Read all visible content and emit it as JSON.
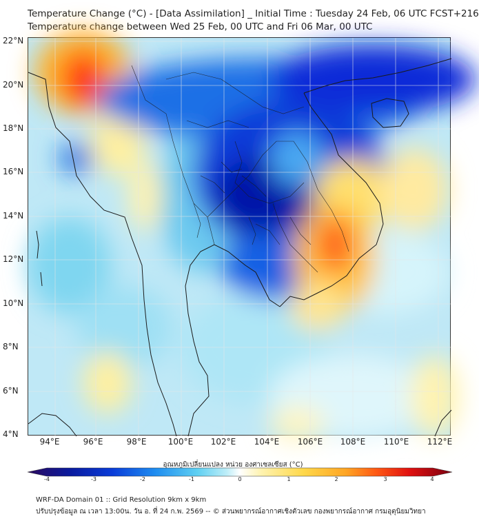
{
  "header": {
    "title_line1": "Temperature Change (°C) - [Data Assimilation] _ Initial Time : Tuesday 24 Feb, 06 UTC FCST+216",
    "title_line2": "Temperature change between Wed 25 Feb, 00 UTC and Fri 06 Mar, 00 UTC"
  },
  "map": {
    "lat_labels": [
      "22°N",
      "20°N",
      "18°N",
      "16°N",
      "14°N",
      "12°N",
      "10°N",
      "8°N",
      "6°N",
      "4°N"
    ],
    "lon_labels": [
      "94°E",
      "96°E",
      "98°E",
      "100°E",
      "102°E",
      "104°E",
      "106°E",
      "108°E",
      "110°E",
      "112°E"
    ],
    "colors": {
      "background": "#bfe8f6",
      "land_outline": "#1a1a1a",
      "grid": "#d9d9d9"
    }
  },
  "colorbar": {
    "label": "อุณหภูมิเปลี่ยนแปลง หน่วย องศาเซลเซียส (°C)",
    "ticks": [
      "-4",
      "-3",
      "-2",
      "-1",
      "0",
      "1",
      "2",
      "3",
      "4"
    ],
    "colors": [
      "#2b0a5e",
      "#0a1a9e",
      "#0a3cd8",
      "#1e8cf0",
      "#5fd0f2",
      "#bfeef8",
      "#ffffff",
      "#fff3b0",
      "#ffd84a",
      "#ffa524",
      "#ff5a14",
      "#e01010",
      "#7a0010"
    ]
  },
  "footer": {
    "line1": "WRF-DA Domain 01 :: Grid Resolution 9km x 9km",
    "line2": "ปรับปรุงข้อมูล ณ เวลา 13:00น. วัน อ. ที่ 24 ก.พ. 2569 -- © ส่วนพยากรณ์อากาศเชิงตัวเลข กองพยากรณ์อากาศ กรมอุตุนิยมวิทยา"
  }
}
